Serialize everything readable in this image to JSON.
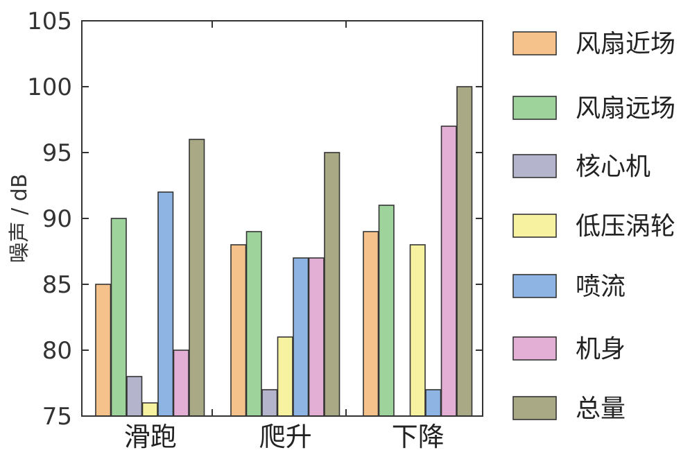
{
  "chart_data": {
    "type": "bar",
    "title": "",
    "xlabel": "",
    "ylabel": "噪声 / dB",
    "ylim": [
      75,
      105
    ],
    "yticks": [
      75,
      80,
      85,
      90,
      95,
      100,
      105
    ],
    "grid": false,
    "legend_position": "right",
    "categories": [
      "滑跑",
      "爬升",
      "下降"
    ],
    "series": [
      {
        "name": "风扇近场",
        "color": "#F5C28C",
        "values": [
          85,
          88,
          89
        ]
      },
      {
        "name": "风扇远场",
        "color": "#9ED39B",
        "values": [
          90,
          89,
          91
        ]
      },
      {
        "name": "核心机",
        "color": "#B4B4CC",
        "values": [
          78,
          77,
          null
        ]
      },
      {
        "name": "低压涡轮",
        "color": "#F7F2A0",
        "values": [
          76,
          81,
          88
        ]
      },
      {
        "name": "喷流",
        "color": "#8EB4E3",
        "values": [
          92,
          87,
          77
        ]
      },
      {
        "name": "机身",
        "color": "#E4AFD4",
        "values": [
          80,
          87,
          97
        ]
      },
      {
        "name": "总量",
        "color": "#A9A985",
        "values": [
          96,
          95,
          100
        ]
      }
    ]
  }
}
